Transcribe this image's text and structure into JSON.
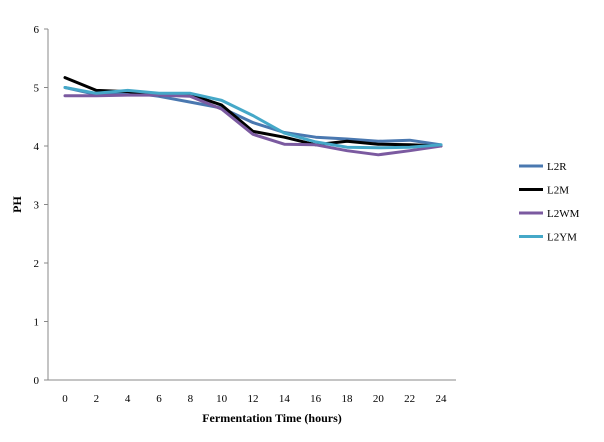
{
  "chart_data": {
    "type": "line",
    "title": "",
    "xlabel": "Fermentation Time (hours)",
    "ylabel": "PH",
    "x": [
      0,
      2,
      4,
      6,
      8,
      10,
      12,
      14,
      16,
      18,
      20,
      22,
      24
    ],
    "ylim": [
      0,
      6
    ],
    "yticks": [
      0,
      1,
      2,
      3,
      4,
      5,
      6
    ],
    "grid": false,
    "legend_position": "right",
    "series": [
      {
        "name": "L2R",
        "color": "#4a78b0",
        "values": [
          5.0,
          4.88,
          4.92,
          4.85,
          4.75,
          4.65,
          4.4,
          4.23,
          4.15,
          4.12,
          4.08,
          4.1,
          4.02
        ]
      },
      {
        "name": "L2M",
        "color": "#000000",
        "values": [
          5.17,
          4.95,
          4.93,
          4.87,
          4.88,
          4.7,
          4.25,
          4.15,
          4.02,
          4.08,
          4.03,
          4.02,
          4.0
        ]
      },
      {
        "name": "L2WM",
        "color": "#7b5aa0",
        "values": [
          4.86,
          4.86,
          4.87,
          4.87,
          4.85,
          4.63,
          4.2,
          4.03,
          4.02,
          3.92,
          3.85,
          3.92,
          4.0
        ]
      },
      {
        "name": "L2YM",
        "color": "#45a8c8",
        "values": [
          5.0,
          4.9,
          4.95,
          4.9,
          4.9,
          4.78,
          4.52,
          4.22,
          4.07,
          3.98,
          3.97,
          3.98,
          4.02
        ]
      }
    ]
  }
}
